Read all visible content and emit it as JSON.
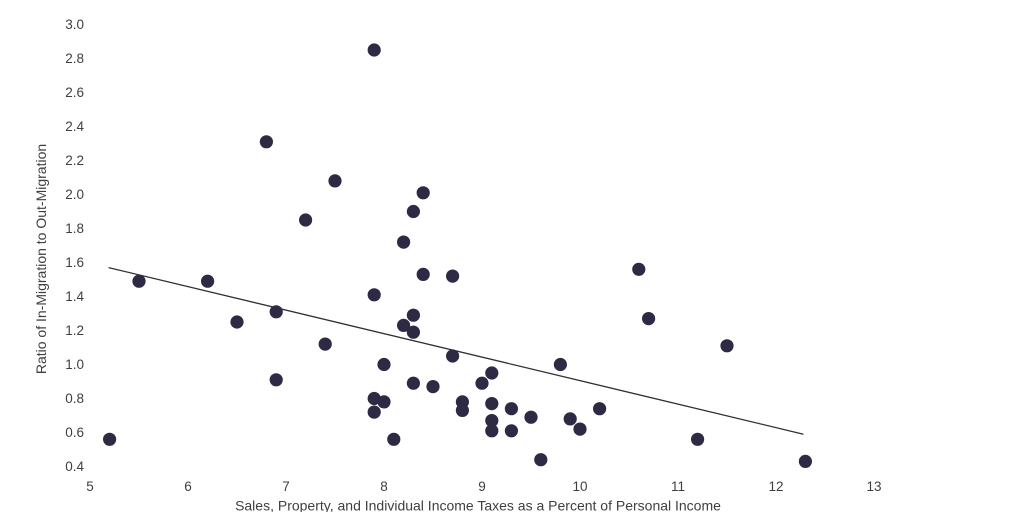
{
  "chart_data": {
    "type": "scatter",
    "title": "",
    "xlabel": "Sales, Property, and Individual Income Taxes as a Percent of Personal Income",
    "ylabel": "Ratio of In-Migration to Out-Migration",
    "xlim": [
      5,
      13
    ],
    "ylim": [
      0.4,
      3.0
    ],
    "x_ticks": [
      5,
      6,
      7,
      8,
      9,
      10,
      11,
      12,
      13
    ],
    "y_ticks": [
      0.4,
      0.6,
      0.8,
      1.0,
      1.2,
      1.4,
      1.6,
      1.8,
      2.0,
      2.2,
      2.4,
      2.6,
      2.8,
      3.0
    ],
    "grid": false,
    "legend": null,
    "points": [
      [
        5.2,
        0.56
      ],
      [
        5.5,
        1.49
      ],
      [
        6.2,
        1.49
      ],
      [
        6.5,
        1.25
      ],
      [
        6.8,
        2.31
      ],
      [
        6.9,
        1.31
      ],
      [
        6.9,
        0.91
      ],
      [
        7.2,
        1.85
      ],
      [
        7.4,
        1.12
      ],
      [
        7.5,
        2.08
      ],
      [
        7.9,
        2.85
      ],
      [
        7.9,
        1.41
      ],
      [
        7.9,
        0.8
      ],
      [
        7.9,
        0.72
      ],
      [
        8.0,
        1.0
      ],
      [
        8.0,
        0.78
      ],
      [
        8.1,
        0.56
      ],
      [
        8.2,
        1.72
      ],
      [
        8.2,
        1.23
      ],
      [
        8.3,
        1.9
      ],
      [
        8.3,
        1.29
      ],
      [
        8.3,
        1.19
      ],
      [
        8.3,
        0.89
      ],
      [
        8.4,
        2.01
      ],
      [
        8.4,
        1.53
      ],
      [
        8.5,
        0.87
      ],
      [
        8.7,
        1.52
      ],
      [
        8.7,
        1.05
      ],
      [
        8.8,
        0.78
      ],
      [
        8.8,
        0.73
      ],
      [
        9.0,
        0.89
      ],
      [
        9.1,
        0.95
      ],
      [
        9.1,
        0.77
      ],
      [
        9.1,
        0.67
      ],
      [
        9.1,
        0.61
      ],
      [
        9.3,
        0.74
      ],
      [
        9.3,
        0.61
      ],
      [
        9.5,
        0.69
      ],
      [
        9.6,
        0.44
      ],
      [
        9.8,
        1.0
      ],
      [
        9.9,
        0.68
      ],
      [
        10.0,
        0.62
      ],
      [
        10.2,
        0.74
      ],
      [
        10.6,
        1.56
      ],
      [
        10.7,
        1.27
      ],
      [
        11.2,
        0.56
      ],
      [
        11.5,
        1.11
      ],
      [
        12.3,
        0.43
      ]
    ],
    "trend_line": {
      "x1": 5.19,
      "y1": 1.57,
      "x2": 12.28,
      "y2": 0.59
    },
    "colors": {
      "point": "#2e2a44",
      "trend": "#303030",
      "text": "#3f3f3f"
    }
  }
}
